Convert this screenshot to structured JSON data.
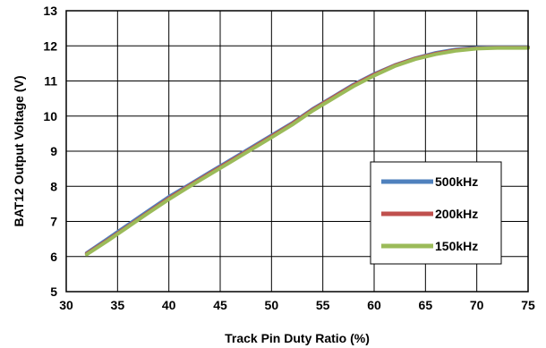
{
  "chart_data": {
    "type": "line",
    "title": "",
    "xlabel": "Track Pin Duty Ratio (%)",
    "ylabel": "BAT12 Output Voltage (V)",
    "xlim": [
      30,
      75
    ],
    "ylim": [
      5,
      13
    ],
    "xticks": [
      "30",
      "35",
      "40",
      "45",
      "50",
      "55",
      "60",
      "65",
      "70",
      "75"
    ],
    "yticks": [
      "5",
      "6",
      "7",
      "8",
      "9",
      "10",
      "11",
      "12",
      "13"
    ],
    "grid": true,
    "legend_position": "lower-right",
    "series": [
      {
        "name": "500kHz",
        "color": "#4f81bd",
        "x": [
          32,
          34,
          36,
          38,
          40,
          42,
          44,
          46,
          48,
          50,
          52,
          54,
          56,
          58,
          60,
          62,
          64,
          66,
          68,
          70,
          72,
          74,
          75
        ],
        "y": [
          6.1,
          6.5,
          6.9,
          7.3,
          7.7,
          8.05,
          8.4,
          8.75,
          9.1,
          9.45,
          9.8,
          10.2,
          10.55,
          10.9,
          11.2,
          11.45,
          11.65,
          11.8,
          11.9,
          11.95,
          11.96,
          11.96,
          11.96
        ]
      },
      {
        "name": "200kHz",
        "color": "#c0504d",
        "x": [
          32,
          34,
          36,
          38,
          40,
          42,
          44,
          46,
          48,
          50,
          52,
          54,
          56,
          58,
          60,
          62,
          64,
          66,
          68,
          70,
          72,
          74,
          75
        ],
        "y": [
          6.08,
          6.46,
          6.86,
          7.26,
          7.66,
          8.02,
          8.37,
          8.72,
          9.07,
          9.42,
          9.78,
          10.18,
          10.53,
          10.88,
          11.18,
          11.44,
          11.64,
          11.78,
          11.88,
          11.93,
          11.95,
          11.95,
          11.95
        ]
      },
      {
        "name": "150kHz",
        "color": "#9bbb59",
        "x": [
          32,
          34,
          36,
          38,
          40,
          42,
          44,
          46,
          48,
          50,
          52,
          54,
          56,
          58,
          60,
          62,
          64,
          66,
          68,
          70,
          72,
          74,
          75
        ],
        "y": [
          6.06,
          6.44,
          6.84,
          7.24,
          7.63,
          7.99,
          8.34,
          8.69,
          9.04,
          9.39,
          9.75,
          10.15,
          10.5,
          10.85,
          11.15,
          11.42,
          11.62,
          11.76,
          11.86,
          11.92,
          11.94,
          11.94,
          11.94
        ]
      }
    ]
  }
}
